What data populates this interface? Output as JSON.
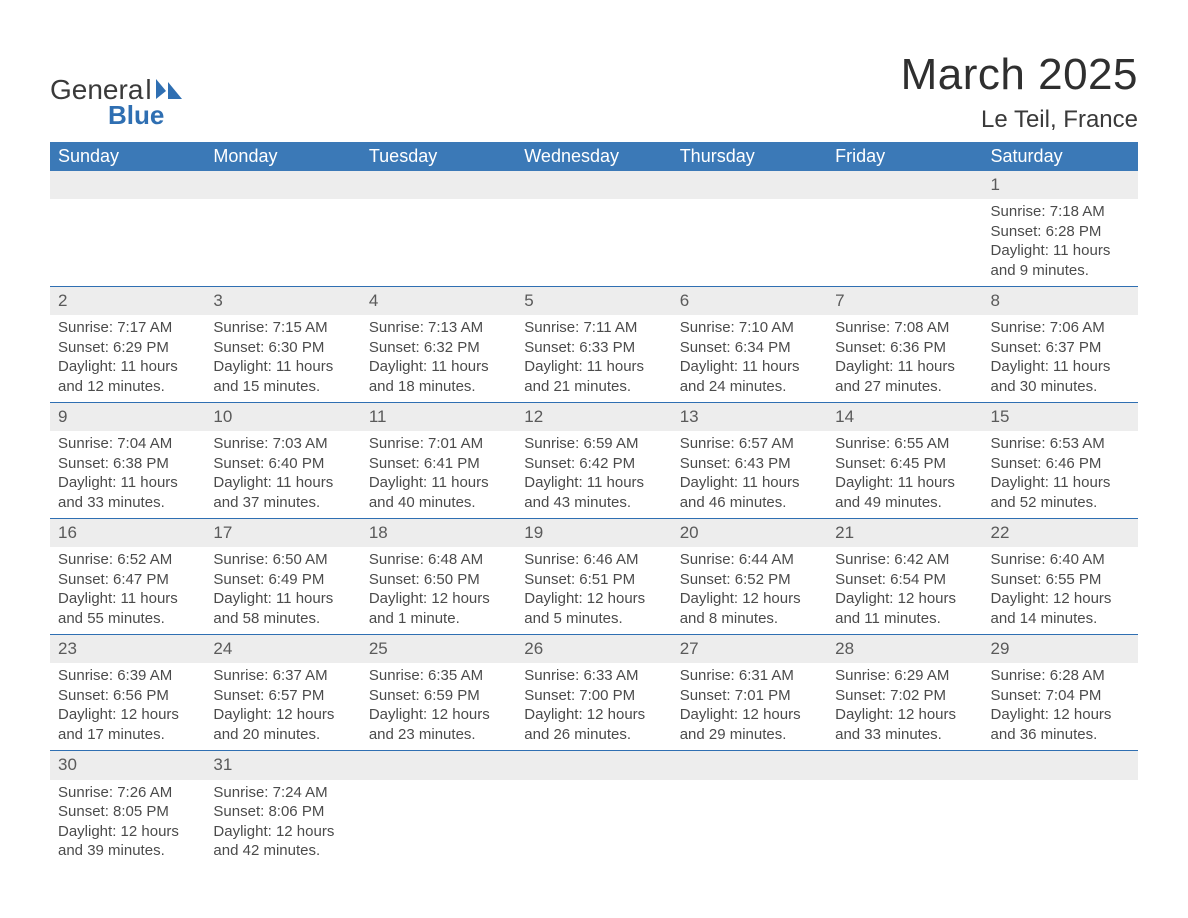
{
  "brand": {
    "text1": "Genera",
    "text2": "l",
    "text3": "Blue",
    "shape_color": "#2f6fb2"
  },
  "header": {
    "month": "March 2025",
    "location": "Le Teil, France"
  },
  "weekdays": [
    "Sunday",
    "Monday",
    "Tuesday",
    "Wednesday",
    "Thursday",
    "Friday",
    "Saturday"
  ],
  "colors": {
    "header_bg": "#3b79b7",
    "daynum_bg": "#ededed",
    "rule": "#2f6fb2",
    "text": "#4b4b4b"
  },
  "labels": {
    "sunrise": "Sunrise: ",
    "sunset": "Sunset: ",
    "daylight": "Daylight: "
  },
  "weeks": [
    [
      null,
      null,
      null,
      null,
      null,
      null,
      {
        "n": "1",
        "sunrise": "7:18 AM",
        "sunset": "6:28 PM",
        "daylight": "11 hours and 9 minutes."
      }
    ],
    [
      {
        "n": "2",
        "sunrise": "7:17 AM",
        "sunset": "6:29 PM",
        "daylight": "11 hours and 12 minutes."
      },
      {
        "n": "3",
        "sunrise": "7:15 AM",
        "sunset": "6:30 PM",
        "daylight": "11 hours and 15 minutes."
      },
      {
        "n": "4",
        "sunrise": "7:13 AM",
        "sunset": "6:32 PM",
        "daylight": "11 hours and 18 minutes."
      },
      {
        "n": "5",
        "sunrise": "7:11 AM",
        "sunset": "6:33 PM",
        "daylight": "11 hours and 21 minutes."
      },
      {
        "n": "6",
        "sunrise": "7:10 AM",
        "sunset": "6:34 PM",
        "daylight": "11 hours and 24 minutes."
      },
      {
        "n": "7",
        "sunrise": "7:08 AM",
        "sunset": "6:36 PM",
        "daylight": "11 hours and 27 minutes."
      },
      {
        "n": "8",
        "sunrise": "7:06 AM",
        "sunset": "6:37 PM",
        "daylight": "11 hours and 30 minutes."
      }
    ],
    [
      {
        "n": "9",
        "sunrise": "7:04 AM",
        "sunset": "6:38 PM",
        "daylight": "11 hours and 33 minutes."
      },
      {
        "n": "10",
        "sunrise": "7:03 AM",
        "sunset": "6:40 PM",
        "daylight": "11 hours and 37 minutes."
      },
      {
        "n": "11",
        "sunrise": "7:01 AM",
        "sunset": "6:41 PM",
        "daylight": "11 hours and 40 minutes."
      },
      {
        "n": "12",
        "sunrise": "6:59 AM",
        "sunset": "6:42 PM",
        "daylight": "11 hours and 43 minutes."
      },
      {
        "n": "13",
        "sunrise": "6:57 AM",
        "sunset": "6:43 PM",
        "daylight": "11 hours and 46 minutes."
      },
      {
        "n": "14",
        "sunrise": "6:55 AM",
        "sunset": "6:45 PM",
        "daylight": "11 hours and 49 minutes."
      },
      {
        "n": "15",
        "sunrise": "6:53 AM",
        "sunset": "6:46 PM",
        "daylight": "11 hours and 52 minutes."
      }
    ],
    [
      {
        "n": "16",
        "sunrise": "6:52 AM",
        "sunset": "6:47 PM",
        "daylight": "11 hours and 55 minutes."
      },
      {
        "n": "17",
        "sunrise": "6:50 AM",
        "sunset": "6:49 PM",
        "daylight": "11 hours and 58 minutes."
      },
      {
        "n": "18",
        "sunrise": "6:48 AM",
        "sunset": "6:50 PM",
        "daylight": "12 hours and 1 minute."
      },
      {
        "n": "19",
        "sunrise": "6:46 AM",
        "sunset": "6:51 PM",
        "daylight": "12 hours and 5 minutes."
      },
      {
        "n": "20",
        "sunrise": "6:44 AM",
        "sunset": "6:52 PM",
        "daylight": "12 hours and 8 minutes."
      },
      {
        "n": "21",
        "sunrise": "6:42 AM",
        "sunset": "6:54 PM",
        "daylight": "12 hours and 11 minutes."
      },
      {
        "n": "22",
        "sunrise": "6:40 AM",
        "sunset": "6:55 PM",
        "daylight": "12 hours and 14 minutes."
      }
    ],
    [
      {
        "n": "23",
        "sunrise": "6:39 AM",
        "sunset": "6:56 PM",
        "daylight": "12 hours and 17 minutes."
      },
      {
        "n": "24",
        "sunrise": "6:37 AM",
        "sunset": "6:57 PM",
        "daylight": "12 hours and 20 minutes."
      },
      {
        "n": "25",
        "sunrise": "6:35 AM",
        "sunset": "6:59 PM",
        "daylight": "12 hours and 23 minutes."
      },
      {
        "n": "26",
        "sunrise": "6:33 AM",
        "sunset": "7:00 PM",
        "daylight": "12 hours and 26 minutes."
      },
      {
        "n": "27",
        "sunrise": "6:31 AM",
        "sunset": "7:01 PM",
        "daylight": "12 hours and 29 minutes."
      },
      {
        "n": "28",
        "sunrise": "6:29 AM",
        "sunset": "7:02 PM",
        "daylight": "12 hours and 33 minutes."
      },
      {
        "n": "29",
        "sunrise": "6:28 AM",
        "sunset": "7:04 PM",
        "daylight": "12 hours and 36 minutes."
      }
    ],
    [
      {
        "n": "30",
        "sunrise": "7:26 AM",
        "sunset": "8:05 PM",
        "daylight": "12 hours and 39 minutes."
      },
      {
        "n": "31",
        "sunrise": "7:24 AM",
        "sunset": "8:06 PM",
        "daylight": "12 hours and 42 minutes."
      },
      null,
      null,
      null,
      null,
      null
    ]
  ]
}
